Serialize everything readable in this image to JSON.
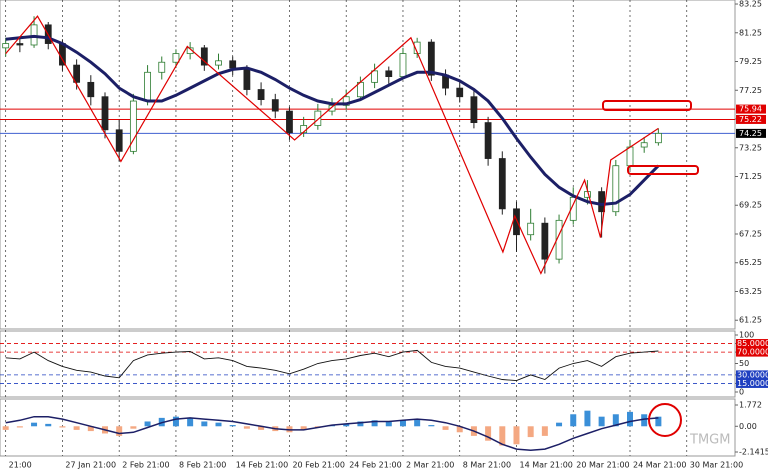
{
  "watermark": "TMGM",
  "chart_data": [
    {
      "type": "candlestick",
      "xlim": [
        -0.1,
        12.85
      ],
      "xticks": [
        {
          "value": 0,
          "label": "21:00"
        },
        {
          "value": 1,
          "label": "27 Jan 21:00"
        },
        {
          "value": 2,
          "label": "2 Feb 21:00"
        },
        {
          "value": 3,
          "label": "8 Feb 21:00"
        },
        {
          "value": 4,
          "label": "14 Feb 21:00"
        },
        {
          "value": 5,
          "label": "20 Feb 21:00"
        },
        {
          "value": 6,
          "label": "24 Feb 21:00"
        },
        {
          "value": 7,
          "label": "2 Mar 21:00"
        },
        {
          "value": 8,
          "label": "8 Mar 21:00"
        },
        {
          "value": 9,
          "label": "14 Mar 21:00"
        },
        {
          "value": 10,
          "label": "20 Mar 21:00"
        },
        {
          "value": 11,
          "label": "24 Mar 21:00"
        },
        {
          "value": 12,
          "label": "30 Mar 21:00"
        }
      ],
      "ylim": [
        60.64,
        83.53
      ],
      "yticks": [
        83.25,
        81.25,
        79.25,
        77.25,
        75.25,
        73.25,
        71.25,
        69.25,
        67.25,
        65.25,
        63.25,
        61.25
      ],
      "up_color": "#2e7d32",
      "down_color": "#222222",
      "x": [
        0,
        0.25,
        0.5,
        0.75,
        1,
        1.25,
        1.5,
        1.75,
        2,
        2.25,
        2.5,
        2.75,
        3,
        3.25,
        3.5,
        3.75,
        4,
        4.25,
        4.5,
        4.75,
        5,
        5.25,
        5.5,
        5.75,
        6,
        6.25,
        6.5,
        6.75,
        7,
        7.25,
        7.5,
        7.75,
        8,
        8.25,
        8.5,
        8.75,
        9,
        9.25,
        9.5,
        9.75,
        10,
        10.25,
        10.5,
        10.75,
        11,
        11.25,
        11.5
      ],
      "ohlc": [
        [
          80.2,
          80.9,
          79.6,
          80.5
        ],
        [
          80.5,
          81.0,
          79.9,
          80.4
        ],
        [
          80.4,
          82.4,
          80.2,
          81.8
        ],
        [
          81.8,
          82.0,
          80.1,
          80.5
        ],
        [
          80.5,
          80.8,
          78.6,
          79.0
        ],
        [
          79.0,
          79.4,
          77.3,
          77.8
        ],
        [
          77.8,
          78.3,
          76.2,
          76.8
        ],
        [
          76.8,
          77.1,
          73.9,
          74.5
        ],
        [
          74.5,
          75.2,
          72.3,
          73.0
        ],
        [
          73.0,
          77.0,
          72.8,
          76.5
        ],
        [
          76.5,
          79.0,
          76.2,
          78.5
        ],
        [
          78.5,
          79.6,
          78.0,
          79.2
        ],
        [
          79.2,
          80.1,
          78.8,
          79.8
        ],
        [
          79.8,
          80.6,
          79.4,
          80.2
        ],
        [
          80.2,
          80.4,
          78.6,
          79.0
        ],
        [
          79.0,
          79.8,
          78.7,
          79.3
        ],
        [
          79.3,
          79.6,
          78.3,
          78.8
        ],
        [
          78.8,
          79.0,
          76.9,
          77.3
        ],
        [
          77.3,
          77.8,
          76.2,
          76.6
        ],
        [
          76.6,
          77.0,
          75.3,
          75.8
        ],
        [
          75.8,
          76.1,
          73.8,
          74.3
        ],
        [
          74.3,
          75.4,
          74.0,
          74.8
        ],
        [
          74.8,
          76.3,
          74.5,
          75.8
        ],
        [
          75.8,
          76.7,
          75.5,
          76.2
        ],
        [
          76.2,
          77.3,
          75.9,
          76.8
        ],
        [
          76.8,
          78.2,
          76.5,
          77.8
        ],
        [
          77.8,
          79.1,
          77.4,
          78.6
        ],
        [
          78.6,
          78.9,
          77.7,
          78.2
        ],
        [
          78.2,
          80.2,
          78.0,
          79.8
        ],
        [
          79.8,
          80.9,
          79.5,
          80.6
        ],
        [
          80.6,
          80.8,
          77.9,
          78.3
        ],
        [
          78.3,
          78.7,
          76.9,
          77.4
        ],
        [
          77.4,
          77.9,
          76.4,
          76.8
        ],
        [
          76.8,
          77.2,
          74.6,
          75.0
        ],
        [
          75.0,
          75.4,
          72.0,
          72.5
        ],
        [
          72.5,
          73.0,
          68.6,
          69.0
        ],
        [
          69.0,
          69.5,
          66.0,
          67.2
        ],
        [
          67.2,
          69.0,
          66.8,
          68.0
        ],
        [
          68.0,
          68.4,
          64.5,
          65.5
        ],
        [
          65.5,
          68.6,
          65.2,
          68.2
        ],
        [
          68.2,
          70.5,
          67.9,
          69.8
        ],
        [
          69.8,
          71.0,
          69.3,
          70.2
        ],
        [
          70.2,
          70.5,
          67.0,
          68.8
        ],
        [
          68.8,
          72.4,
          68.5,
          72.0
        ],
        [
          72.0,
          73.8,
          71.7,
          73.3
        ],
        [
          73.3,
          74.0,
          72.9,
          73.6
        ],
        [
          73.6,
          74.6,
          73.4,
          74.25
        ]
      ],
      "lines": [
        {
          "color": "#1c1f66",
          "width": 3,
          "values": [
            80.8,
            80.9,
            81.0,
            80.9,
            80.5,
            79.9,
            79.2,
            78.4,
            77.4,
            76.8,
            76.5,
            76.5,
            76.9,
            77.4,
            77.9,
            78.4,
            78.7,
            78.8,
            78.5,
            78.0,
            77.4,
            76.9,
            76.5,
            76.3,
            76.3,
            76.6,
            77.1,
            77.6,
            78.1,
            78.5,
            78.5,
            78.3,
            77.9,
            77.3,
            76.5,
            75.3,
            73.9,
            72.6,
            71.4,
            70.5,
            69.9,
            69.5,
            69.3,
            69.4,
            70.0,
            71.0,
            72.0
          ]
        }
      ],
      "zigzag": {
        "color": "#e00000",
        "x": [
          0,
          0.56,
          2.03,
          3.2,
          5.09,
          7.14,
          8.76,
          8.97,
          9.43,
          10.2,
          10.48,
          10.66,
          11.5
        ],
        "values": [
          79.8,
          82.4,
          72.3,
          80.3,
          73.8,
          80.9,
          66.0,
          68.5,
          64.5,
          71.0,
          67.0,
          72.4,
          74.6
        ]
      },
      "hlines": [
        {
          "value": 75.94,
          "color": "#e00000",
          "label_color": "#e00000"
        },
        {
          "value": 75.22,
          "color": "#e00000",
          "label_color": "#e00000"
        },
        {
          "value": 74.25,
          "color": "#4060d0",
          "label_color": "#000000"
        }
      ]
    },
    {
      "type": "line",
      "ylim": [
        0,
        100
      ],
      "yticks": [
        100,
        {
          "value": 85,
          "label": "85.0000",
          "color": "#e00000"
        },
        {
          "value": 70,
          "label": "70.0000",
          "color": "#e00000"
        },
        50,
        {
          "value": 30,
          "label": "30.0000",
          "color": "#2040c0"
        },
        {
          "value": 15,
          "label": "15.0000",
          "color": "#2040c0"
        },
        0
      ],
      "color": "#111111",
      "values": [
        60,
        58,
        70,
        55,
        45,
        38,
        35,
        28,
        25,
        55,
        65,
        68,
        70,
        71,
        58,
        60,
        55,
        45,
        42,
        38,
        32,
        40,
        50,
        55,
        58,
        64,
        68,
        62,
        70,
        73,
        52,
        45,
        42,
        35,
        28,
        22,
        20,
        30,
        22,
        42,
        50,
        55,
        45,
        62,
        68,
        70,
        72
      ]
    },
    {
      "type": "bar",
      "ylim": [
        -2.1415,
        1.772
      ],
      "yticks": [
        1.772,
        {
          "value": 0,
          "label": "0.00"
        },
        -2.1415
      ],
      "pos_color": "#3a8fd8",
      "neg_color": "#f4a882",
      "line_color": "#1c1f66",
      "values": [
        -0.3,
        -0.1,
        0.3,
        0.2,
        -0.1,
        -0.3,
        -0.4,
        -0.6,
        -0.8,
        -0.2,
        0.4,
        0.7,
        0.8,
        0.7,
        0.4,
        0.3,
        0.1,
        -0.2,
        -0.3,
        -0.4,
        -0.5,
        -0.3,
        -0.1,
        0.1,
        0.2,
        0.4,
        0.5,
        0.4,
        0.5,
        0.6,
        0.1,
        -0.3,
        -0.5,
        -0.8,
        -1.2,
        -1.6,
        -1.5,
        -0.9,
        -0.8,
        0.3,
        1.0,
        1.3,
        0.8,
        1.0,
        1.2,
        1.0,
        0.8
      ],
      "line": [
        0.3,
        0.5,
        0.8,
        0.8,
        0.6,
        0.3,
        0.0,
        -0.3,
        -0.6,
        -0.5,
        -0.1,
        0.3,
        0.6,
        0.7,
        0.6,
        0.5,
        0.4,
        0.2,
        0.0,
        -0.2,
        -0.3,
        -0.3,
        -0.1,
        0.1,
        0.2,
        0.3,
        0.4,
        0.4,
        0.5,
        0.6,
        0.5,
        0.3,
        0.0,
        -0.4,
        -0.9,
        -1.5,
        -1.9,
        -2.0,
        -1.9,
        -1.5,
        -1.0,
        -0.6,
        -0.2,
        0.1,
        0.4,
        0.6,
        0.7
      ]
    }
  ]
}
